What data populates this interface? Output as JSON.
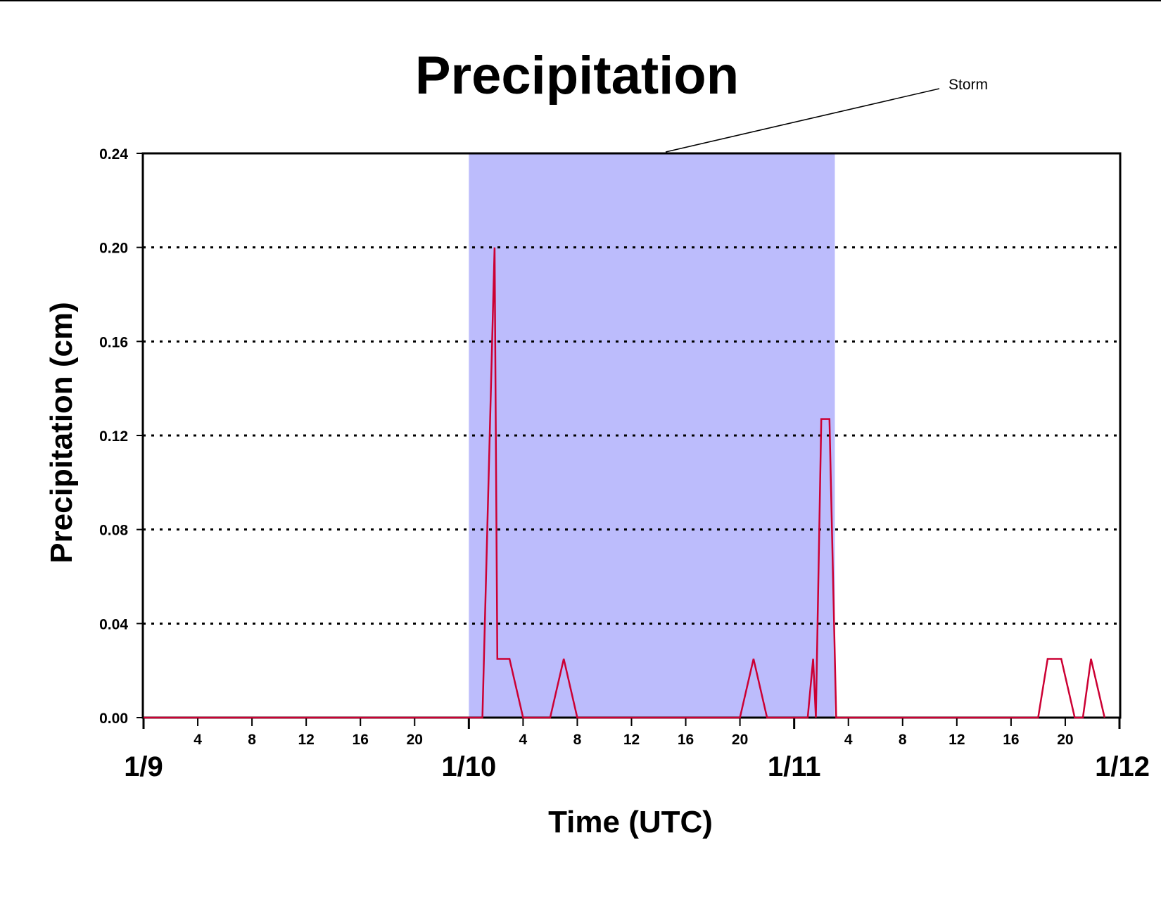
{
  "chart_data": {
    "type": "line",
    "title": "Precipitation",
    "xlabel": "Time (UTC)",
    "ylabel": "Precipitation (cm)",
    "x_unit": "hours",
    "xlim": [
      0,
      72
    ],
    "ylim": [
      0,
      0.24
    ],
    "y_ticks": [
      "0.00",
      "0.04",
      "0.08",
      "0.12",
      "0.16",
      "0.20",
      "0.24"
    ],
    "y_gridlines": [
      0.04,
      0.08,
      0.12,
      0.16,
      0.2
    ],
    "grid": "dotted horizontal",
    "date_ticks": [
      {
        "x": 0,
        "label": "1/9"
      },
      {
        "x": 24,
        "label": "1/10"
      },
      {
        "x": 48,
        "label": "1/11"
      },
      {
        "x": 72,
        "label": "1/12"
      }
    ],
    "hour_ticks": [
      {
        "x": 4,
        "label": "4"
      },
      {
        "x": 8,
        "label": "8"
      },
      {
        "x": 12,
        "label": "12"
      },
      {
        "x": 16,
        "label": "16"
      },
      {
        "x": 20,
        "label": "20"
      },
      {
        "x": 28,
        "label": "4"
      },
      {
        "x": 32,
        "label": "8"
      },
      {
        "x": 36,
        "label": "12"
      },
      {
        "x": 40,
        "label": "16"
      },
      {
        "x": 44,
        "label": "20"
      },
      {
        "x": 52,
        "label": "4"
      },
      {
        "x": 56,
        "label": "8"
      },
      {
        "x": 60,
        "label": "12"
      },
      {
        "x": 64,
        "label": "16"
      },
      {
        "x": 68,
        "label": "20"
      }
    ],
    "shaded_region": {
      "label": "Storm",
      "x_start": 24,
      "x_end": 51,
      "color": "#bcbcfc"
    },
    "annotation": {
      "text": "Storm"
    },
    "series": [
      {
        "color": "#cc0033",
        "storm_color": "#cc0044",
        "x": [
          0,
          25,
          25.9,
          26.1,
          26.6,
          27,
          28,
          30,
          31,
          32,
          44,
          45,
          46,
          49,
          49.4,
          49.6,
          50,
          50.4,
          50.6,
          51.1,
          66,
          66.7,
          67.7,
          68.7,
          69.3,
          69.9,
          70.9
        ],
        "y": [
          0,
          0,
          0.2,
          0.025,
          0.025,
          0.025,
          0,
          0,
          0.025,
          0,
          0,
          0.025,
          0,
          0,
          0.025,
          0,
          0.127,
          0.127,
          0.127,
          0,
          0,
          0.025,
          0.025,
          0,
          0,
          0.025,
          0
        ]
      }
    ]
  }
}
